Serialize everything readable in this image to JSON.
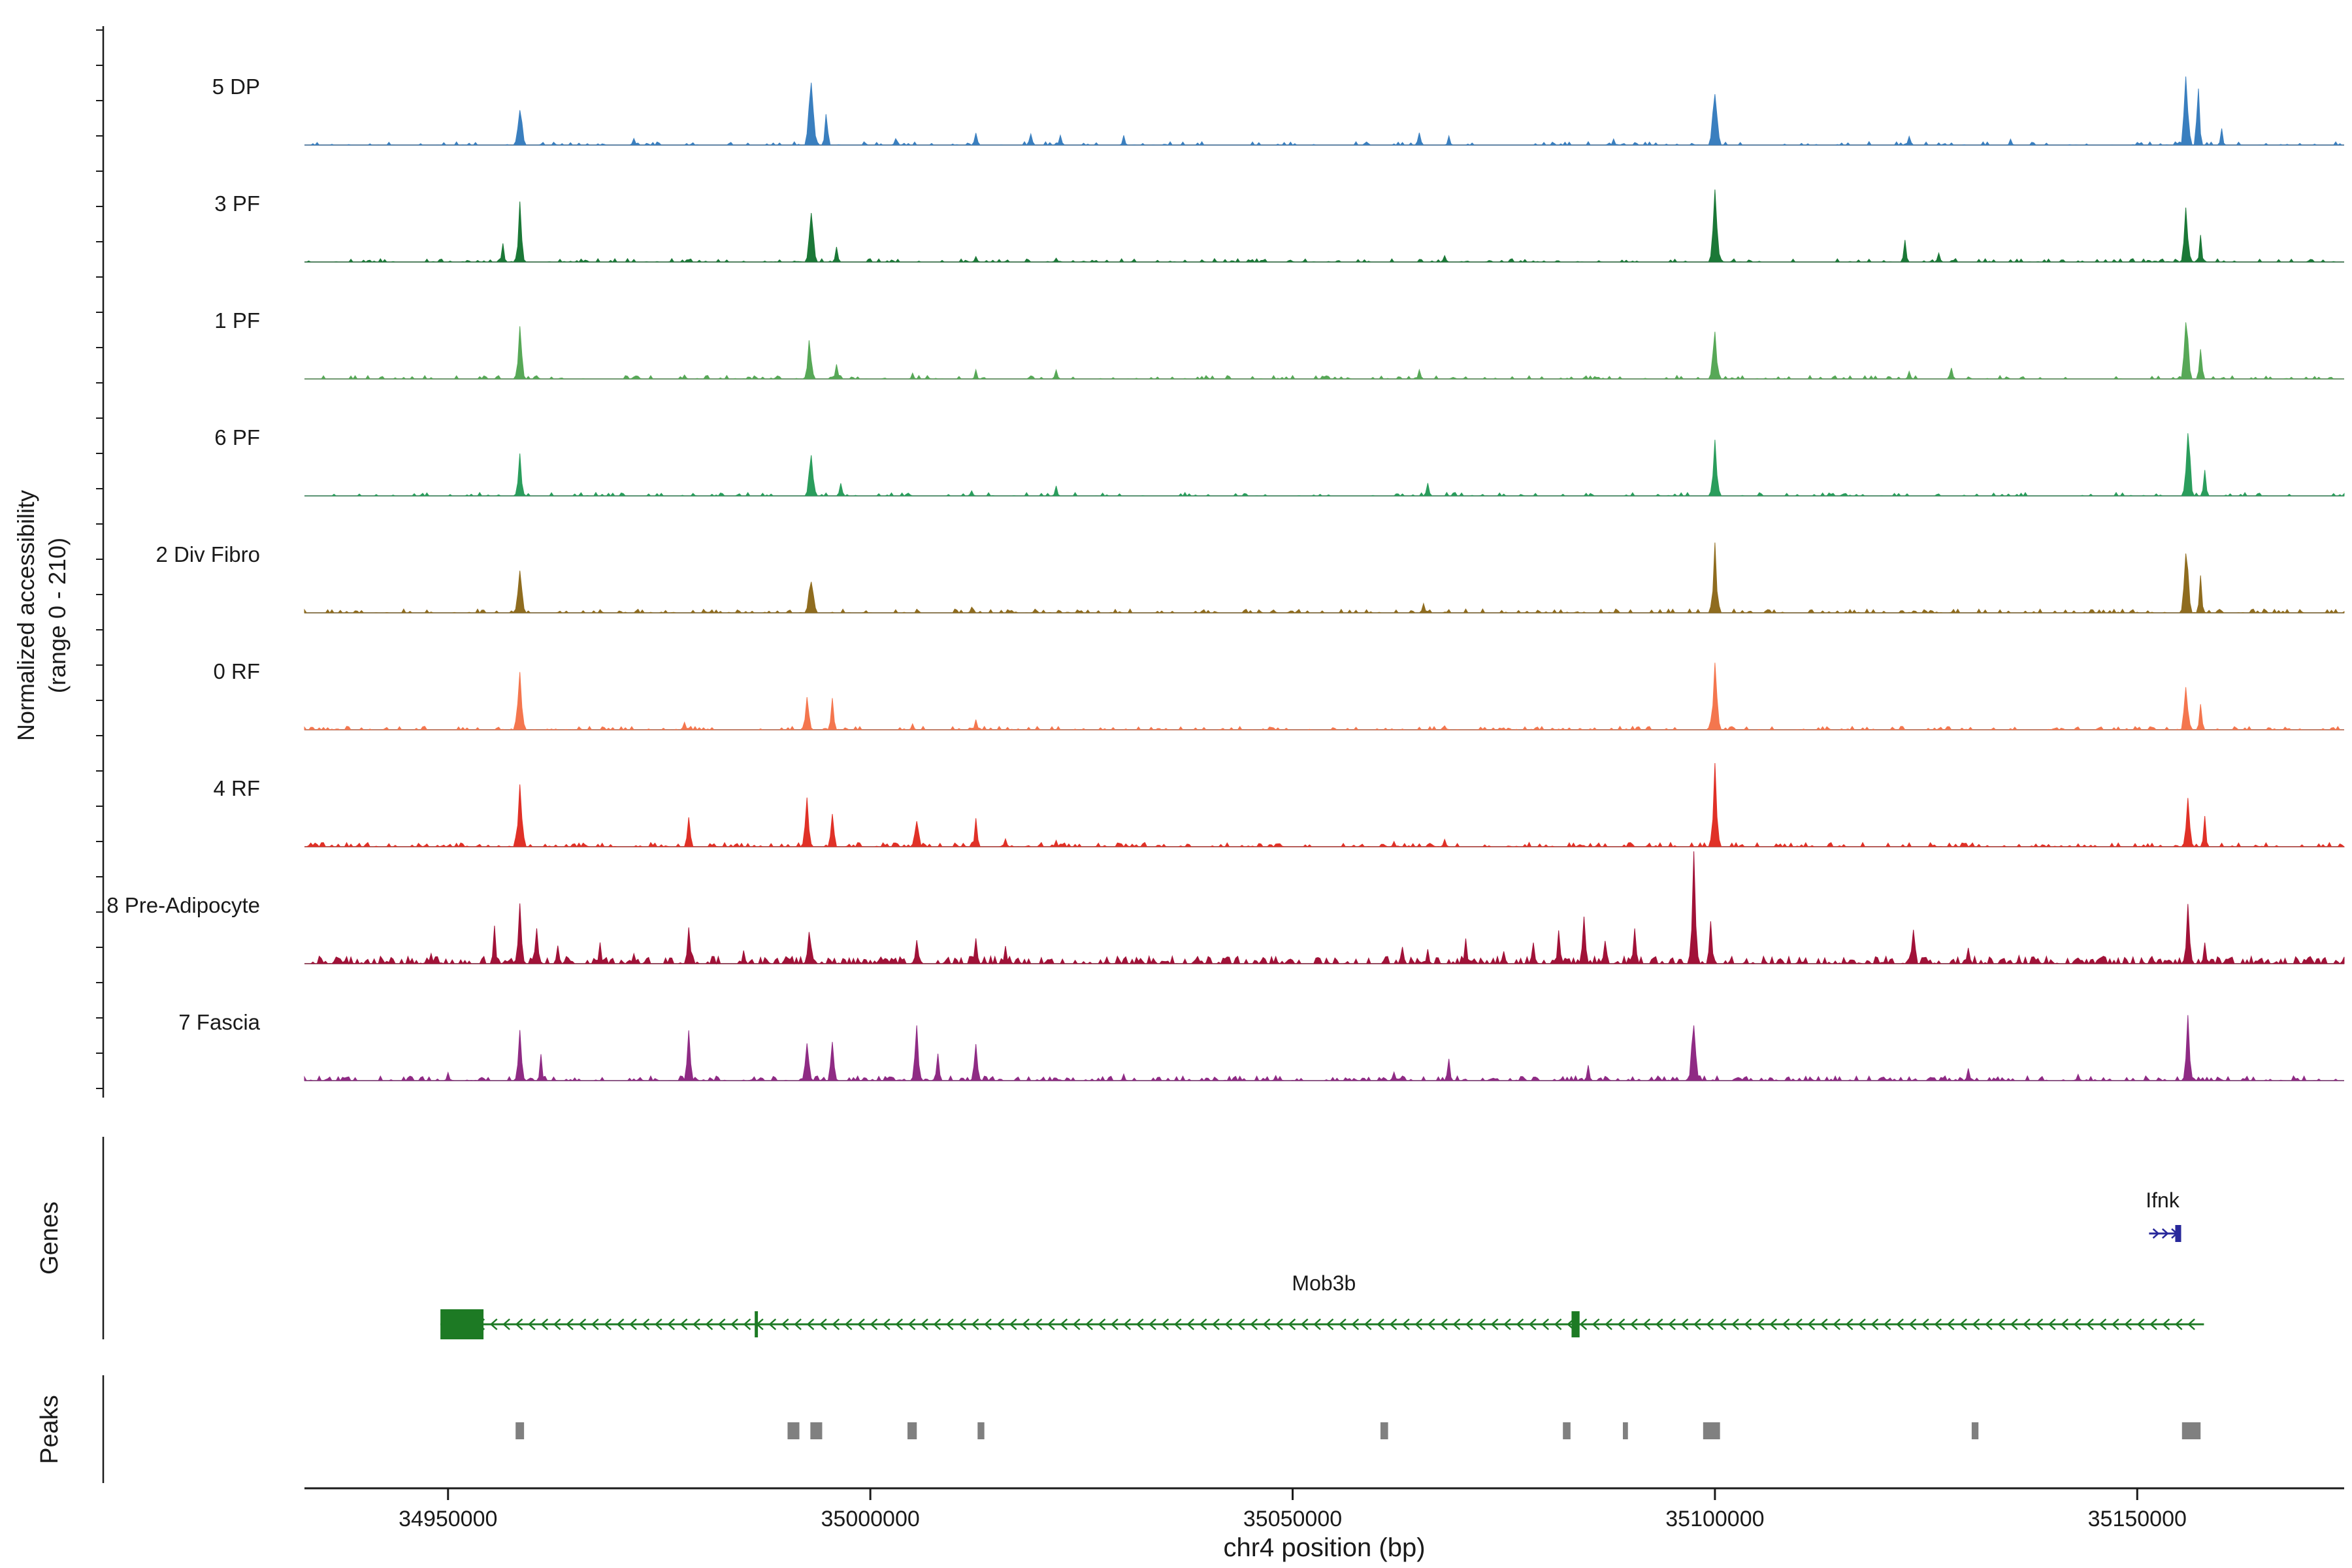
{
  "y_axis": {
    "label_line1": "Normalized accessibility",
    "label_line2": "(range 0 - 210)"
  },
  "sections": {
    "genes_label": "Genes",
    "peaks_label": "Peaks"
  },
  "x_axis": {
    "title": "chr4 position (bp)",
    "tick_labels": [
      "34950000",
      "35000000",
      "35050000",
      "35100000",
      "35150000"
    ],
    "tick_values": [
      34950000,
      35000000,
      35050000,
      35100000,
      35150000
    ]
  },
  "chart_data": {
    "type": "area",
    "subtype": "genome-coverage-tracks",
    "title": "",
    "xlabel": "chr4 position (bp)",
    "ylabel": "Normalized accessibility (range 0 - 210)",
    "x_domain": [
      34933000,
      35174500
    ],
    "track_y_range": [
      0,
      210
    ],
    "peak_format": "[bp_center, height_fraction_of_210, base_width_bp]",
    "tracks": [
      {
        "name": "5 DP",
        "color": "#3a7fbf",
        "noise_density": 0.18,
        "noise_amp": 0.04,
        "height_scale": 1.0,
        "peaks": [
          [
            34958500,
            0.55,
            1400
          ],
          [
            34972000,
            0.1,
            900
          ],
          [
            34993000,
            0.95,
            1600
          ],
          [
            34994800,
            0.4,
            1000
          ],
          [
            35003000,
            0.08,
            800
          ],
          [
            35012500,
            0.15,
            900
          ],
          [
            35019000,
            0.18,
            900
          ],
          [
            35022500,
            0.12,
            900
          ],
          [
            35030000,
            0.1,
            800
          ],
          [
            35065000,
            0.14,
            1000
          ],
          [
            35068500,
            0.1,
            800
          ],
          [
            35088000,
            0.06,
            800
          ],
          [
            35100000,
            0.72,
            1500
          ],
          [
            35123000,
            0.12,
            900
          ],
          [
            35135000,
            0.06,
            800
          ],
          [
            35155800,
            1.0,
            1300
          ],
          [
            35157200,
            0.75,
            1000
          ],
          [
            35160000,
            0.2,
            800
          ]
        ]
      },
      {
        "name": "3 PF",
        "color": "#1b7837",
        "noise_density": 0.22,
        "noise_amp": 0.04,
        "height_scale": 1.0,
        "peaks": [
          [
            34956500,
            0.2,
            900
          ],
          [
            34958500,
            0.62,
            1300
          ],
          [
            34993000,
            0.6,
            1500
          ],
          [
            34996000,
            0.2,
            900
          ],
          [
            35012500,
            0.08,
            800
          ],
          [
            35022000,
            0.06,
            800
          ],
          [
            35068000,
            0.1,
            900
          ],
          [
            35100000,
            0.8,
            1500
          ],
          [
            35122500,
            0.22,
            1000
          ],
          [
            35126500,
            0.12,
            900
          ],
          [
            35155800,
            0.72,
            1300
          ],
          [
            35157500,
            0.3,
            800
          ]
        ]
      },
      {
        "name": "1 PF",
        "color": "#57a857",
        "noise_density": 0.22,
        "noise_amp": 0.04,
        "height_scale": 1.0,
        "peaks": [
          [
            34958500,
            0.6,
            1300
          ],
          [
            34978000,
            0.06,
            800
          ],
          [
            34992800,
            0.5,
            1400
          ],
          [
            34996000,
            0.22,
            900
          ],
          [
            35005000,
            0.08,
            800
          ],
          [
            35012500,
            0.1,
            800
          ],
          [
            35022000,
            0.12,
            900
          ],
          [
            35065000,
            0.1,
            900
          ],
          [
            35100000,
            0.62,
            1400
          ],
          [
            35123000,
            0.1,
            800
          ],
          [
            35128000,
            0.16,
            900
          ],
          [
            35155800,
            0.95,
            1300
          ],
          [
            35157500,
            0.4,
            900
          ]
        ]
      },
      {
        "name": "6 PF",
        "color": "#2a9d5c",
        "noise_density": 0.18,
        "noise_amp": 0.04,
        "height_scale": 1.0,
        "peaks": [
          [
            34958500,
            0.52,
            1300
          ],
          [
            34993000,
            0.55,
            1400
          ],
          [
            34996500,
            0.2,
            900
          ],
          [
            35012000,
            0.08,
            800
          ],
          [
            35022000,
            0.1,
            900
          ],
          [
            35066000,
            0.15,
            1000
          ],
          [
            35100000,
            0.68,
            1400
          ],
          [
            35156000,
            1.0,
            1300
          ],
          [
            35158000,
            0.35,
            900
          ]
        ]
      },
      {
        "name": "2 Div Fibro",
        "color": "#8f6c1f",
        "noise_density": 0.3,
        "noise_amp": 0.045,
        "height_scale": 1.0,
        "peaks": [
          [
            34958500,
            0.55,
            1400
          ],
          [
            34993000,
            0.5,
            1500
          ],
          [
            35012000,
            0.06,
            900
          ],
          [
            35065500,
            0.1,
            1000
          ],
          [
            35100000,
            0.72,
            1500
          ],
          [
            35155800,
            0.9,
            1400
          ],
          [
            35157500,
            0.45,
            900
          ]
        ]
      },
      {
        "name": "0 RF",
        "color": "#f4764e",
        "noise_density": 0.25,
        "noise_amp": 0.04,
        "height_scale": 1.0,
        "peaks": [
          [
            34958500,
            0.78,
            1500
          ],
          [
            34978000,
            0.1,
            900
          ],
          [
            34992500,
            0.45,
            1300
          ],
          [
            34995500,
            0.35,
            1100
          ],
          [
            35005000,
            0.08,
            800
          ],
          [
            35012500,
            0.1,
            900
          ],
          [
            35068000,
            0.06,
            800
          ],
          [
            35100000,
            0.78,
            1500
          ],
          [
            35155800,
            0.62,
            1300
          ],
          [
            35157500,
            0.3,
            900
          ]
        ]
      },
      {
        "name": "4 RF",
        "color": "#e03127",
        "noise_density": 0.3,
        "noise_amp": 0.05,
        "height_scale": 1.0,
        "peaks": [
          [
            34958500,
            0.8,
            1500
          ],
          [
            34978500,
            0.32,
            1100
          ],
          [
            34992500,
            0.52,
            1300
          ],
          [
            34995500,
            0.4,
            1100
          ],
          [
            35005500,
            0.42,
            1200
          ],
          [
            35012500,
            0.28,
            1000
          ],
          [
            35016000,
            0.12,
            900
          ],
          [
            35022000,
            0.08,
            800
          ],
          [
            35062000,
            0.06,
            800
          ],
          [
            35068000,
            0.08,
            900
          ],
          [
            35090000,
            0.06,
            800
          ],
          [
            35100000,
            0.92,
            1500
          ],
          [
            35156000,
            0.6,
            1300
          ],
          [
            35158000,
            0.3,
            900
          ]
        ]
      },
      {
        "name": "8 Pre-Adipocyte",
        "color": "#a11238",
        "noise_density": 0.5,
        "noise_amp": 0.07,
        "height_scale": 1.25,
        "peaks": [
          [
            34948000,
            0.12,
            900
          ],
          [
            34955500,
            0.3,
            1000
          ],
          [
            34958500,
            0.55,
            1300
          ],
          [
            34960500,
            0.4,
            1000
          ],
          [
            34963000,
            0.2,
            900
          ],
          [
            34968000,
            0.18,
            900
          ],
          [
            34972000,
            0.12,
            900
          ],
          [
            34978500,
            0.35,
            1100
          ],
          [
            34985000,
            0.12,
            900
          ],
          [
            34992800,
            0.42,
            1300
          ],
          [
            35005500,
            0.28,
            1000
          ],
          [
            35012500,
            0.25,
            1000
          ],
          [
            35016000,
            0.18,
            900
          ],
          [
            35028000,
            0.08,
            800
          ],
          [
            35040000,
            0.06,
            800
          ],
          [
            35048000,
            0.08,
            800
          ],
          [
            35063000,
            0.18,
            1000
          ],
          [
            35066000,
            0.12,
            900
          ],
          [
            35070500,
            0.2,
            1000
          ],
          [
            35075000,
            0.15,
            900
          ],
          [
            35078500,
            0.22,
            1000
          ],
          [
            35081500,
            0.3,
            1000
          ],
          [
            35084500,
            0.45,
            1200
          ],
          [
            35087000,
            0.3,
            1000
          ],
          [
            35090500,
            0.35,
            1100
          ],
          [
            35097500,
            1.0,
            1400
          ],
          [
            35099500,
            0.5,
            1000
          ],
          [
            35110000,
            0.08,
            800
          ],
          [
            35123500,
            0.42,
            1100
          ],
          [
            35130000,
            0.18,
            900
          ],
          [
            35136000,
            0.08,
            800
          ],
          [
            35146000,
            0.06,
            800
          ],
          [
            35156000,
            0.55,
            1300
          ],
          [
            35158000,
            0.25,
            900
          ]
        ]
      },
      {
        "name": "7 Fascia",
        "color": "#8f2b84",
        "noise_density": 0.4,
        "noise_amp": 0.05,
        "height_scale": 1.1,
        "peaks": [
          [
            34950000,
            0.08,
            800
          ],
          [
            34958500,
            0.45,
            1300
          ],
          [
            34961000,
            0.25,
            900
          ],
          [
            34978500,
            0.48,
            1200
          ],
          [
            34992500,
            0.5,
            1300
          ],
          [
            34995500,
            0.45,
            1100
          ],
          [
            35005500,
            0.62,
            1300
          ],
          [
            35008000,
            0.3,
            900
          ],
          [
            35012500,
            0.45,
            1200
          ],
          [
            35030000,
            0.06,
            800
          ],
          [
            35048000,
            0.06,
            800
          ],
          [
            35062000,
            0.1,
            900
          ],
          [
            35068500,
            0.2,
            1000
          ],
          [
            35085000,
            0.15,
            900
          ],
          [
            35097500,
            0.8,
            1400
          ],
          [
            35130000,
            0.15,
            900
          ],
          [
            35143000,
            0.08,
            800
          ],
          [
            35156000,
            0.62,
            1300
          ]
        ]
      }
    ],
    "genes": [
      {
        "name": "Mob3b",
        "color": "#1d7a24",
        "strand": "-",
        "start": 34949100,
        "end": 35157900,
        "exon_box": [
          34949100,
          34954200
        ],
        "thick_marks": [
          [
            34986500,
            380
          ],
          [
            35083500,
            950
          ]
        ],
        "label_bp": 35053700
      },
      {
        "name": "Ifnk",
        "color": "#28289b",
        "strand": "+",
        "start": 35151400,
        "end": 35155200,
        "exon_box": [
          35154500,
          35155200
        ],
        "thick_marks": [],
        "label_bp": 35153000
      }
    ],
    "peak_regions": [
      [
        34958000,
        34959000
      ],
      [
        34990200,
        34991600
      ],
      [
        34992900,
        34994300
      ],
      [
        35004400,
        35005500
      ],
      [
        35012700,
        35013500
      ],
      [
        35060400,
        35061300
      ],
      [
        35082000,
        35082900
      ],
      [
        35089100,
        35089700
      ],
      [
        35098600,
        35100600
      ],
      [
        35130400,
        35131200
      ],
      [
        35155300,
        35157500
      ]
    ],
    "peak_color": "#808080",
    "legend": "none",
    "grid": false
  }
}
